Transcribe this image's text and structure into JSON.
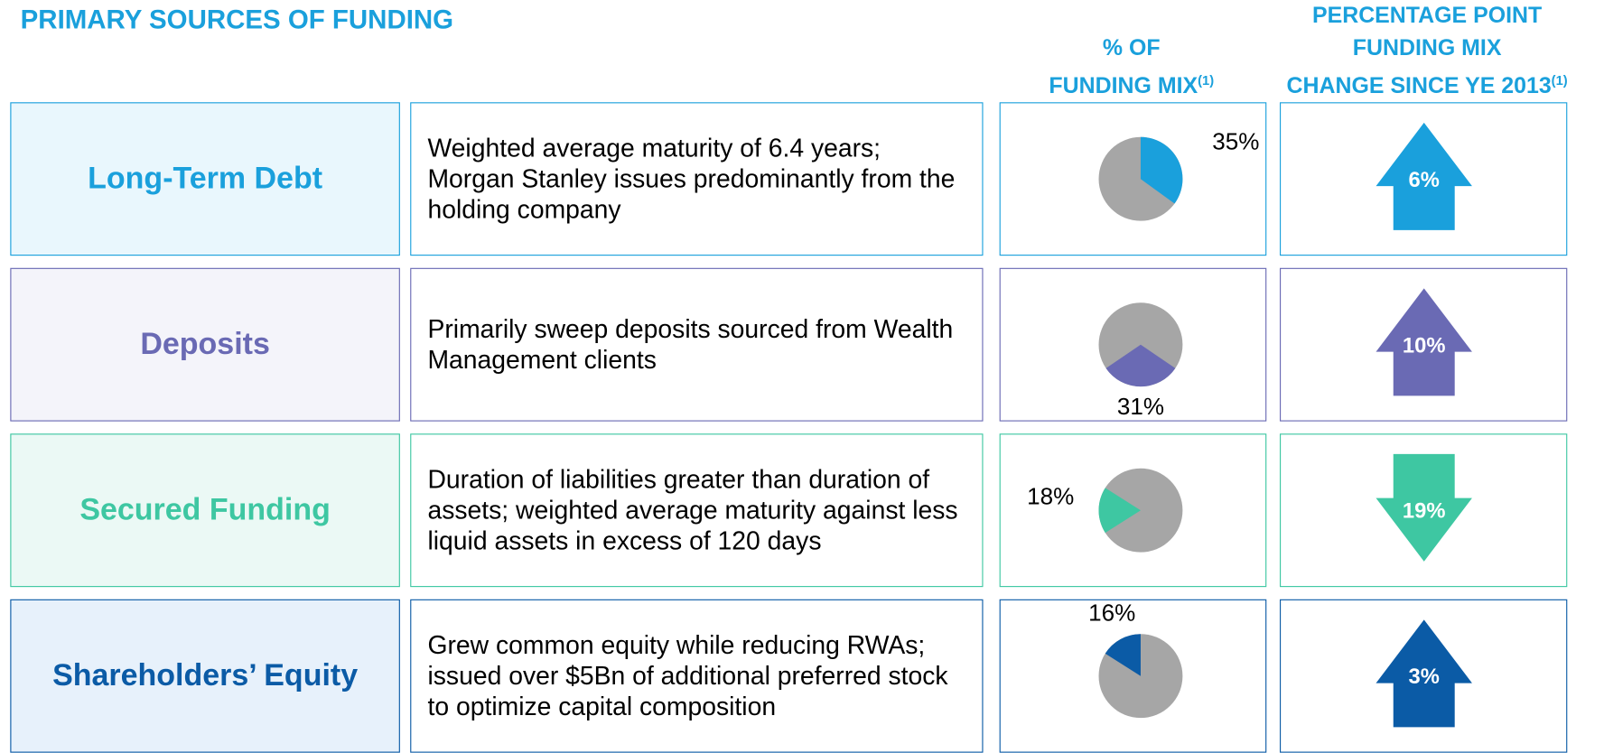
{
  "title": "PRIMARY SOURCES OF FUNDING",
  "columns": [
    {
      "lines": [
        "% OF",
        "FUNDING MIX"
      ],
      "note": "(1)"
    },
    {
      "lines": [
        "PERCENTAGE POINT",
        "FUNDING MIX",
        "CHANGE SINCE YE 2013"
      ],
      "note": "(1)"
    }
  ],
  "rows": [
    {
      "name": "Long-Term Debt",
      "description": "Weighted average maturity of 6.4 years; Morgan Stanley issues predominantly from the holding company",
      "color": "#1aa0dc",
      "share": {
        "value": 35,
        "label": "35%"
      },
      "change": {
        "value": 6,
        "label": "6%"
      }
    },
    {
      "name": "Deposits",
      "description": "Primarily sweep deposits sourced from Wealth Management clients",
      "color": "#6a6ab4",
      "share": {
        "value": 31,
        "label": "31%"
      },
      "change": {
        "value": 10,
        "label": "10%"
      }
    },
    {
      "name": "Secured Funding",
      "description": "Duration of liabilities greater than duration of assets; weighted average maturity against less liquid assets in excess of 120 days",
      "color": "#3ec7a2",
      "share": {
        "value": 18,
        "label": "18%"
      },
      "change": {
        "value": -19,
        "label": "19%"
      }
    },
    {
      "name": "Shareholders’ Equity",
      "description": "Grew common equity while reducing RWAs; issued over $5Bn of additional preferred stock to optimize capital composition",
      "color": "#0b5ba6",
      "share": {
        "value": 16,
        "label": "16%"
      },
      "change": {
        "value": 3,
        "label": "3%"
      }
    }
  ]
}
